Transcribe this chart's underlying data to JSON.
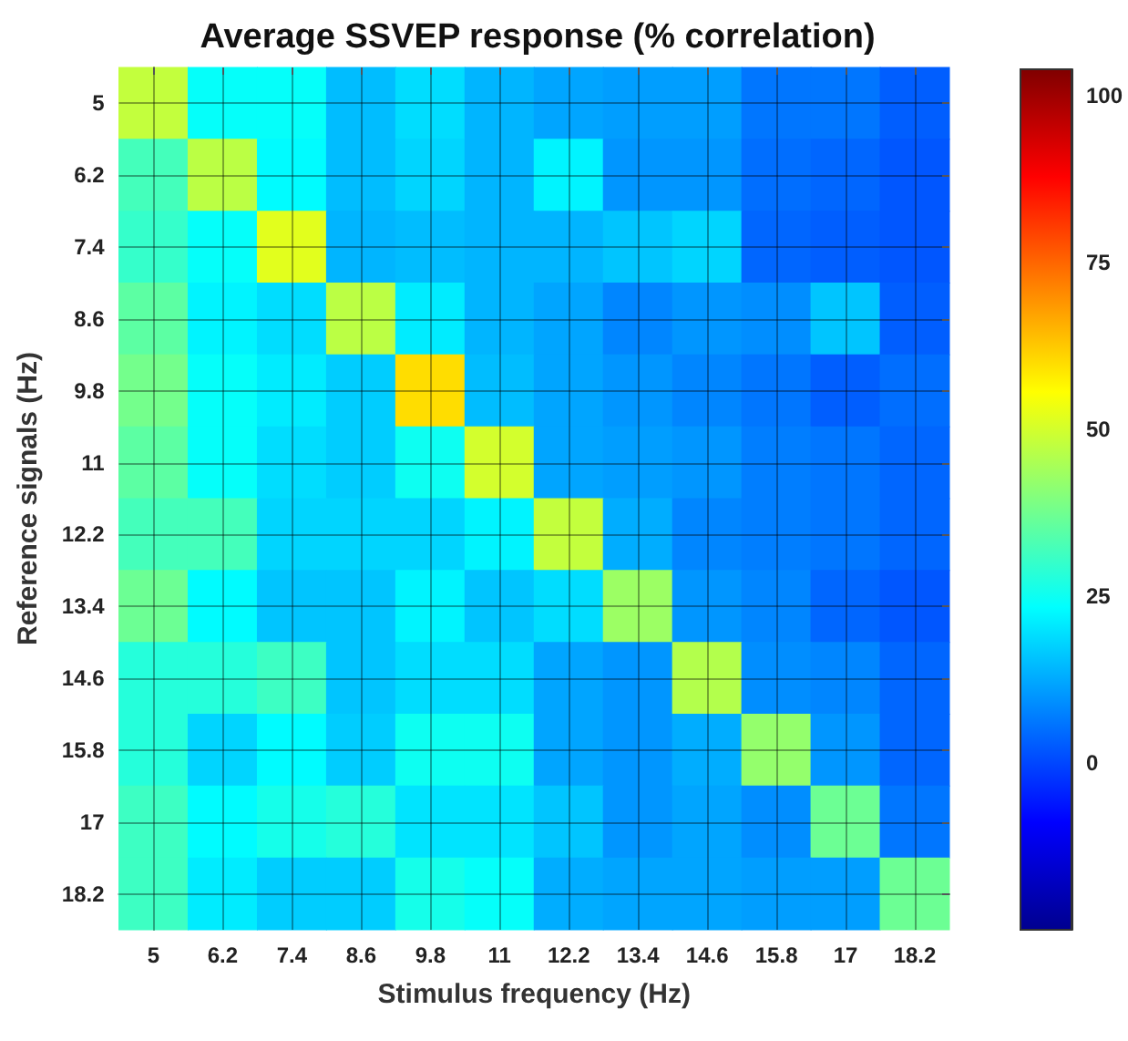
{
  "chart_data": {
    "type": "heatmap",
    "title": "Average SSVEP response (% correlation)",
    "xlabel": "Stimulus frequency (Hz)",
    "ylabel": "Reference signals (Hz)",
    "categories": [
      "5",
      "6.2",
      "7.4",
      "8.6",
      "9.8",
      "11",
      "12.2",
      "13.4",
      "14.6",
      "15.8",
      "17",
      "18.2"
    ],
    "y_categories": [
      "5",
      "6.2",
      "7.4",
      "8.6",
      "9.8",
      "11",
      "12.2",
      "13.4",
      "14.6",
      "15.8",
      "17",
      "18.2"
    ],
    "cells": [
      [
        48,
        24,
        24,
        15,
        19,
        14,
        12,
        11,
        11,
        6,
        6,
        3
      ],
      [
        32,
        47,
        23,
        15,
        18,
        14,
        22,
        10,
        10,
        5,
        4,
        2
      ],
      [
        30,
        24,
        52,
        14,
        15,
        14,
        14,
        16,
        18,
        4,
        3,
        2
      ],
      [
        35,
        22,
        19,
        47,
        21,
        14,
        12,
        8,
        10,
        9,
        16,
        3
      ],
      [
        38,
        24,
        21,
        17,
        60,
        15,
        12,
        10,
        8,
        6,
        3,
        5
      ],
      [
        35,
        24,
        19,
        17,
        25,
        50,
        12,
        11,
        10,
        7,
        6,
        4
      ],
      [
        32,
        32,
        18,
        18,
        18,
        22,
        48,
        13,
        8,
        7,
        6,
        4
      ],
      [
        37,
        23,
        16,
        16,
        22,
        16,
        19,
        43,
        10,
        8,
        4,
        2
      ],
      [
        28,
        28,
        31,
        16,
        19,
        19,
        12,
        10,
        46,
        9,
        8,
        4
      ],
      [
        28,
        18,
        23,
        17,
        25,
        25,
        12,
        10,
        13,
        42,
        10,
        4
      ],
      [
        31,
        23,
        26,
        28,
        20,
        20,
        16,
        10,
        12,
        9,
        37,
        6
      ],
      [
        31,
        21,
        17,
        17,
        26,
        24,
        13,
        12,
        12,
        11,
        11,
        37
      ]
    ],
    "clim": [
      -25,
      104
    ],
    "cticks": [
      0,
      25,
      50,
      75,
      100
    ],
    "grid": true
  }
}
